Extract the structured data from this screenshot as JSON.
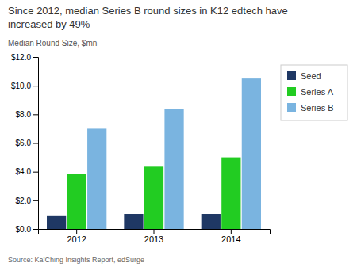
{
  "chart_data": {
    "type": "bar",
    "title": "Since 2012, median Series B round sizes in K12 edtech have",
    "subtitle": "increased by 49%",
    "y_label": "Median Round Size, $mn",
    "annotations": [
      "Source: Ka’Ching Insights Report, edSurge"
    ],
    "categories": [
      "2012",
      "2013",
      "2014"
    ],
    "series": [
      {
        "name": "Seed",
        "color": "#1f3864",
        "values": [
          0.95,
          1.05,
          1.05
        ]
      },
      {
        "name": "Series A",
        "color": "#22cc22",
        "values": [
          3.85,
          4.35,
          5.0
        ]
      },
      {
        "name": "Series B",
        "color": "#7ab4e0",
        "values": [
          7.0,
          8.4,
          10.5
        ]
      }
    ],
    "ylim": [
      0,
      12.0
    ],
    "yticks": [
      {
        "value": 0,
        "label": "$0.0"
      },
      {
        "value": 2.0,
        "label": "$2.0"
      },
      {
        "value": 4.0,
        "label": "$4.0"
      },
      {
        "value": 6.0,
        "label": "$6.0"
      },
      {
        "value": 8.0,
        "label": "$8.0"
      },
      {
        "value": 10.0,
        "label": "$10.0"
      },
      {
        "value": 12.0,
        "label": "$12.0"
      }
    ],
    "grid": false,
    "legend": "right"
  }
}
